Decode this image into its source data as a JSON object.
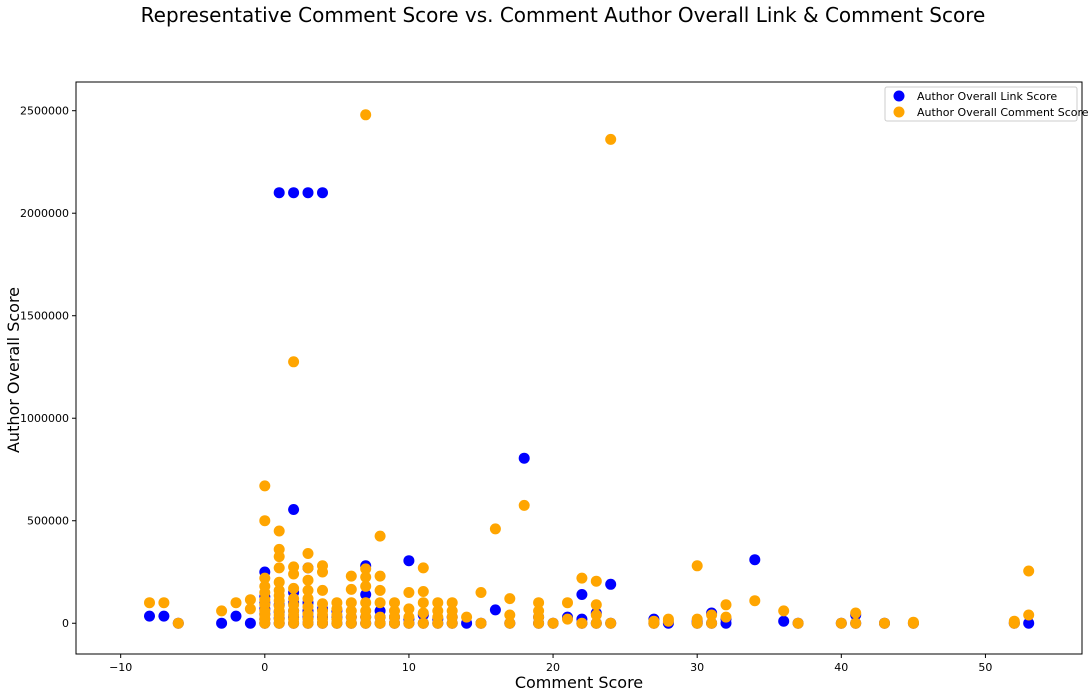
{
  "chart_data": {
    "type": "scatter",
    "title": "Representative Comment Score vs. Comment Author Overall Link & Comment Score",
    "xlabel": "Comment Score",
    "ylabel": "Author Overall Score",
    "xlim": [
      -13.1,
      56.7
    ],
    "ylim": [
      -150000,
      2640000
    ],
    "xticks": [
      -10,
      0,
      10,
      20,
      30,
      40,
      50
    ],
    "yticks": [
      0,
      500000,
      1000000,
      1500000,
      2000000,
      2500000
    ],
    "grid": false,
    "legend_position": "top-right",
    "series": [
      {
        "name": "Author Overall Link Score",
        "color": "#0000ff",
        "points": [
          [
            -8,
            35000
          ],
          [
            -7,
            35000
          ],
          [
            -6,
            0
          ],
          [
            -3,
            0
          ],
          [
            -2,
            35000
          ],
          [
            -1,
            0
          ],
          [
            0,
            0
          ],
          [
            0,
            20000
          ],
          [
            0,
            45000
          ],
          [
            0,
            70000
          ],
          [
            0,
            100000
          ],
          [
            0,
            130000
          ],
          [
            0,
            250000
          ],
          [
            1,
            0
          ],
          [
            1,
            25000
          ],
          [
            1,
            55000
          ],
          [
            1,
            90000
          ],
          [
            1,
            2100000
          ],
          [
            2,
            0
          ],
          [
            2,
            30000
          ],
          [
            2,
            60000
          ],
          [
            2,
            100000
          ],
          [
            2,
            150000
          ],
          [
            2,
            555000
          ],
          [
            2,
            2100000
          ],
          [
            3,
            0
          ],
          [
            3,
            30000
          ],
          [
            3,
            60000
          ],
          [
            3,
            100000
          ],
          [
            3,
            270000
          ],
          [
            3,
            2100000
          ],
          [
            4,
            0
          ],
          [
            4,
            30000
          ],
          [
            4,
            70000
          ],
          [
            4,
            2100000
          ],
          [
            5,
            0
          ],
          [
            5,
            30000
          ],
          [
            5,
            60000
          ],
          [
            6,
            0
          ],
          [
            6,
            30000
          ],
          [
            7,
            0
          ],
          [
            7,
            30000
          ],
          [
            7,
            140000
          ],
          [
            7,
            280000
          ],
          [
            8,
            0
          ],
          [
            8,
            30000
          ],
          [
            8,
            60000
          ],
          [
            9,
            0
          ],
          [
            9,
            30000
          ],
          [
            10,
            0
          ],
          [
            10,
            20000
          ],
          [
            10,
            305000
          ],
          [
            11,
            0
          ],
          [
            11,
            40000
          ],
          [
            12,
            0
          ],
          [
            12,
            20000
          ],
          [
            13,
            0
          ],
          [
            13,
            30000
          ],
          [
            14,
            0
          ],
          [
            15,
            0
          ],
          [
            16,
            65000
          ],
          [
            17,
            0
          ],
          [
            18,
            805000
          ],
          [
            19,
            0
          ],
          [
            19,
            30000
          ],
          [
            20,
            0
          ],
          [
            21,
            30000
          ],
          [
            22,
            0
          ],
          [
            22,
            20000
          ],
          [
            22,
            140000
          ],
          [
            23,
            0
          ],
          [
            23,
            50000
          ],
          [
            24,
            0
          ],
          [
            24,
            190000
          ],
          [
            27,
            0
          ],
          [
            27,
            20000
          ],
          [
            28,
            0
          ],
          [
            30,
            0
          ],
          [
            30,
            10000
          ],
          [
            31,
            0
          ],
          [
            31,
            50000
          ],
          [
            32,
            0
          ],
          [
            32,
            20000
          ],
          [
            34,
            310000
          ],
          [
            36,
            10000
          ],
          [
            37,
            0
          ],
          [
            40,
            0
          ],
          [
            41,
            0
          ],
          [
            41,
            40000
          ],
          [
            43,
            0
          ],
          [
            45,
            0
          ],
          [
            52,
            0
          ],
          [
            53,
            0
          ]
        ]
      },
      {
        "name": "Author Overall Comment Score",
        "color": "#ffa500",
        "points": [
          [
            -8,
            100000
          ],
          [
            -7,
            100000
          ],
          [
            -6,
            0
          ],
          [
            -3,
            60000
          ],
          [
            -2,
            100000
          ],
          [
            -1,
            70000
          ],
          [
            -1,
            115000
          ],
          [
            0,
            0
          ],
          [
            0,
            20000
          ],
          [
            0,
            40000
          ],
          [
            0,
            60000
          ],
          [
            0,
            90000
          ],
          [
            0,
            115000
          ],
          [
            0,
            150000
          ],
          [
            0,
            180000
          ],
          [
            0,
            220000
          ],
          [
            0,
            500000
          ],
          [
            0,
            670000
          ],
          [
            1,
            0
          ],
          [
            1,
            20000
          ],
          [
            1,
            40000
          ],
          [
            1,
            60000
          ],
          [
            1,
            85000
          ],
          [
            1,
            110000
          ],
          [
            1,
            135000
          ],
          [
            1,
            160000
          ],
          [
            1,
            200000
          ],
          [
            1,
            270000
          ],
          [
            1,
            325000
          ],
          [
            1,
            360000
          ],
          [
            1,
            450000
          ],
          [
            2,
            0
          ],
          [
            2,
            20000
          ],
          [
            2,
            40000
          ],
          [
            2,
            60000
          ],
          [
            2,
            90000
          ],
          [
            2,
            120000
          ],
          [
            2,
            170000
          ],
          [
            2,
            240000
          ],
          [
            2,
            275000
          ],
          [
            2,
            1275000
          ],
          [
            3,
            0
          ],
          [
            3,
            20000
          ],
          [
            3,
            45000
          ],
          [
            3,
            80000
          ],
          [
            3,
            120000
          ],
          [
            3,
            160000
          ],
          [
            3,
            210000
          ],
          [
            3,
            270000
          ],
          [
            3,
            340000
          ],
          [
            4,
            0
          ],
          [
            4,
            20000
          ],
          [
            4,
            40000
          ],
          [
            4,
            60000
          ],
          [
            4,
            95000
          ],
          [
            4,
            160000
          ],
          [
            4,
            250000
          ],
          [
            4,
            280000
          ],
          [
            5,
            0
          ],
          [
            5,
            20000
          ],
          [
            5,
            40000
          ],
          [
            5,
            70000
          ],
          [
            5,
            100000
          ],
          [
            6,
            0
          ],
          [
            6,
            30000
          ],
          [
            6,
            60000
          ],
          [
            6,
            100000
          ],
          [
            6,
            165000
          ],
          [
            6,
            230000
          ],
          [
            7,
            0
          ],
          [
            7,
            30000
          ],
          [
            7,
            60000
          ],
          [
            7,
            100000
          ],
          [
            7,
            180000
          ],
          [
            7,
            225000
          ],
          [
            7,
            265000
          ],
          [
            7,
            2480000
          ],
          [
            8,
            0
          ],
          [
            8,
            30000
          ],
          [
            8,
            100000
          ],
          [
            8,
            160000
          ],
          [
            8,
            230000
          ],
          [
            8,
            425000
          ],
          [
            9,
            0
          ],
          [
            9,
            30000
          ],
          [
            9,
            60000
          ],
          [
            9,
            100000
          ],
          [
            10,
            0
          ],
          [
            10,
            30000
          ],
          [
            10,
            70000
          ],
          [
            10,
            150000
          ],
          [
            11,
            0
          ],
          [
            11,
            50000
          ],
          [
            11,
            100000
          ],
          [
            11,
            155000
          ],
          [
            11,
            270000
          ],
          [
            12,
            0
          ],
          [
            12,
            30000
          ],
          [
            12,
            60000
          ],
          [
            12,
            100000
          ],
          [
            13,
            0
          ],
          [
            13,
            30000
          ],
          [
            13,
            60000
          ],
          [
            13,
            100000
          ],
          [
            14,
            30000
          ],
          [
            15,
            0
          ],
          [
            15,
            150000
          ],
          [
            16,
            460000
          ],
          [
            17,
            0
          ],
          [
            17,
            40000
          ],
          [
            17,
            120000
          ],
          [
            18,
            575000
          ],
          [
            19,
            0
          ],
          [
            19,
            30000
          ],
          [
            19,
            60000
          ],
          [
            19,
            100000
          ],
          [
            20,
            0
          ],
          [
            21,
            20000
          ],
          [
            21,
            100000
          ],
          [
            22,
            0
          ],
          [
            22,
            220000
          ],
          [
            23,
            0
          ],
          [
            23,
            40000
          ],
          [
            23,
            90000
          ],
          [
            23,
            205000
          ],
          [
            24,
            0
          ],
          [
            24,
            2360000
          ],
          [
            27,
            0
          ],
          [
            27,
            10000
          ],
          [
            28,
            10000
          ],
          [
            28,
            20000
          ],
          [
            30,
            0
          ],
          [
            30,
            20000
          ],
          [
            30,
            280000
          ],
          [
            31,
            0
          ],
          [
            31,
            40000
          ],
          [
            32,
            30000
          ],
          [
            32,
            90000
          ],
          [
            34,
            110000
          ],
          [
            36,
            60000
          ],
          [
            37,
            0
          ],
          [
            40,
            0
          ],
          [
            41,
            0
          ],
          [
            41,
            50000
          ],
          [
            43,
            0
          ],
          [
            45,
            0
          ],
          [
            45,
            5000
          ],
          [
            52,
            0
          ],
          [
            52,
            10000
          ],
          [
            53,
            40000
          ],
          [
            53,
            255000
          ]
        ]
      }
    ]
  }
}
